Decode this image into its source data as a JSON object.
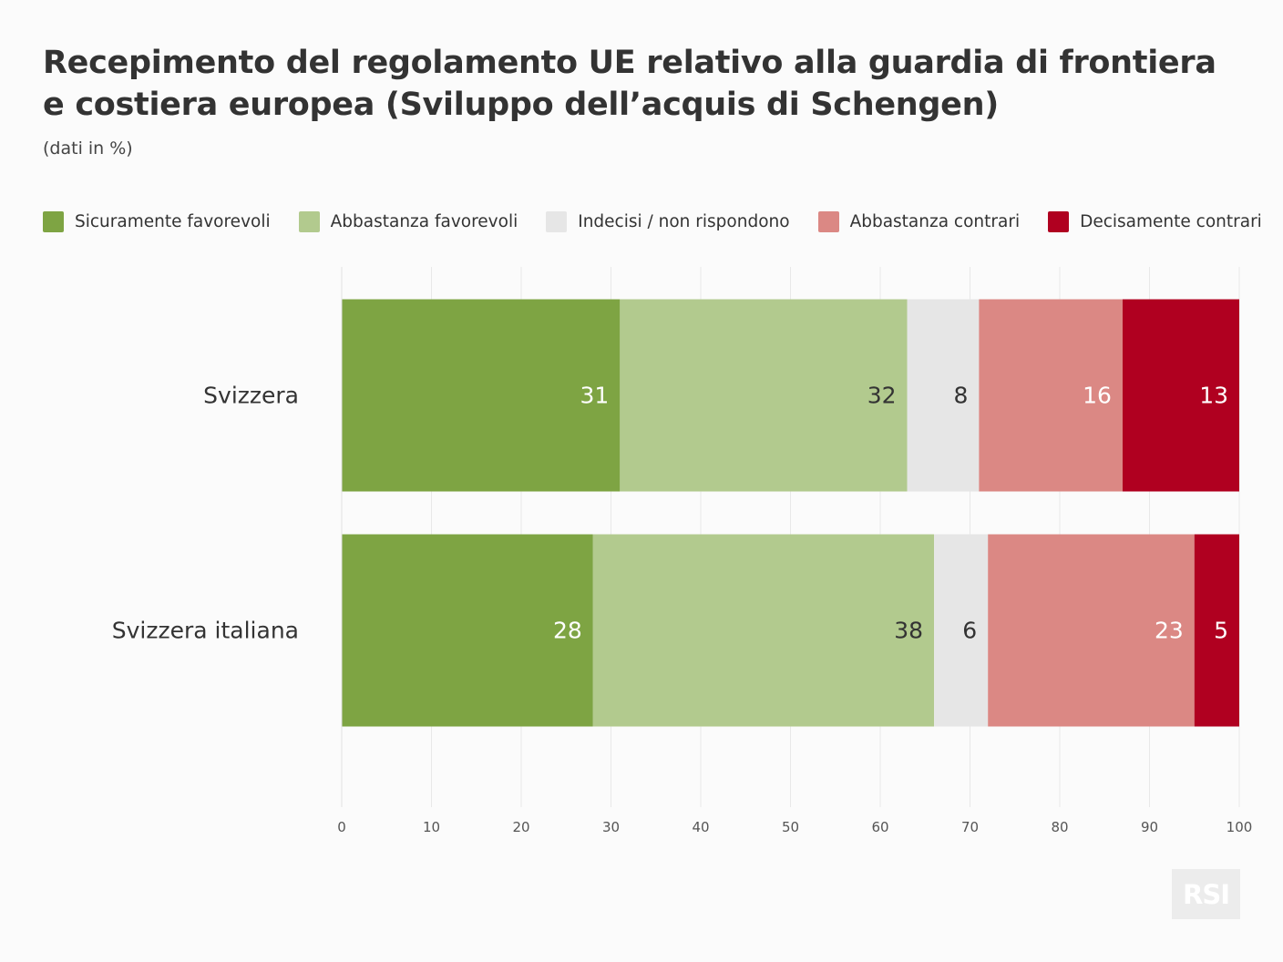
{
  "chart_data": {
    "type": "bar",
    "orientation": "horizontal",
    "stacked": true,
    "title_lines": [
      "Recepimento del regolamento UE relativo alla guardia di frontiera",
      "e costiera europea (Sviluppo dell’acquis di Schengen)"
    ],
    "subtitle": "(dati in %)",
    "categories": [
      "Svizzera",
      "Svizzera italiana"
    ],
    "series": [
      {
        "name": "Sicuramente favorevoli",
        "color": "#7ea443",
        "label_color": "#ffffff",
        "values": [
          31,
          28
        ]
      },
      {
        "name": "Abbastanza favorevoli",
        "color": "#b2ca8e",
        "label_color": "#333333",
        "values": [
          32,
          38
        ]
      },
      {
        "name": "Indecisi / non rispondono",
        "color": "#e6e6e6",
        "label_color": "#333333",
        "values": [
          8,
          6
        ]
      },
      {
        "name": "Abbastanza contrari",
        "color": "#db8884",
        "label_color": "#ffffff",
        "values": [
          16,
          23
        ]
      },
      {
        "name": "Decisamente contrari",
        "color": "#b00020",
        "label_color": "#ffffff",
        "values": [
          13,
          5
        ]
      }
    ],
    "xlim": [
      0,
      100
    ],
    "xticks": [
      0,
      10,
      20,
      30,
      40,
      50,
      60,
      70,
      80,
      90,
      100
    ],
    "grid": "vertical",
    "legend_position": "top"
  },
  "logo": {
    "text": "RSI"
  }
}
